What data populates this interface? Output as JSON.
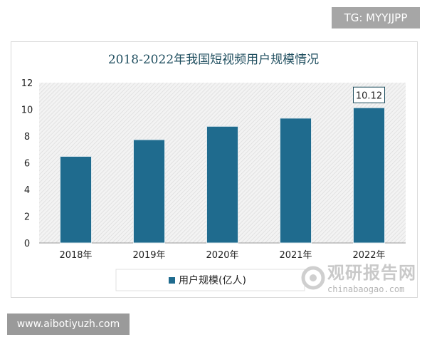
{
  "watermark_top": "TG: MYYJJPP",
  "watermark_bottom": "www.aibotiyuzh.com",
  "logo": {
    "name": "观研报告网",
    "domain": "chinabaogao.com"
  },
  "chart_data": {
    "type": "bar",
    "title": "2018-2022年我国短视频用户规模情况",
    "categories": [
      "2018年",
      "2019年",
      "2020年",
      "2021年",
      "2022年"
    ],
    "series": [
      {
        "name": "用户规模(亿人)",
        "values": [
          6.48,
          7.73,
          8.73,
          9.34,
          10.12
        ]
      }
    ],
    "data_labels": [
      {
        "category": "2022年",
        "text": "10.12"
      }
    ],
    "ylim": [
      0,
      12
    ],
    "yticks": [
      0,
      2,
      4,
      6,
      8,
      10,
      12
    ],
    "grid": false,
    "legend": "bottom",
    "colors": {
      "bar": "#1f6b8e",
      "title": "#1f4e5f"
    }
  }
}
